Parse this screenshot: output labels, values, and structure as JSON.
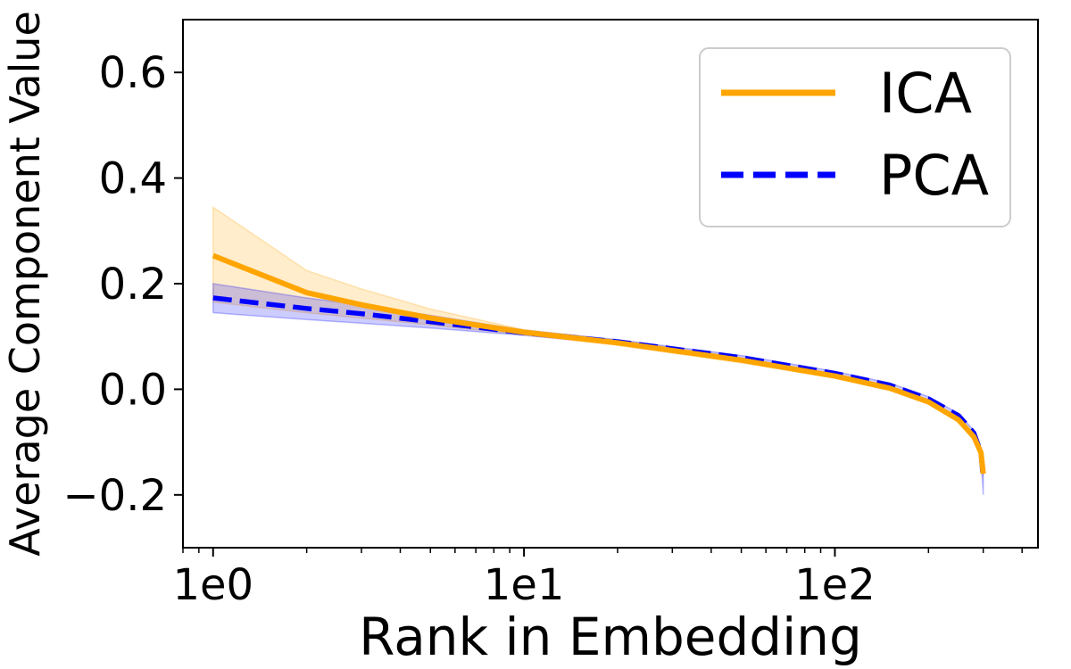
{
  "chart_data": {
    "type": "line",
    "title": "",
    "xlabel": "Rank in Embedding",
    "ylabel": "Average Component Value",
    "xscale": "log",
    "xlim": [
      0.8,
      450
    ],
    "ylim": [
      -0.3,
      0.7
    ],
    "grid": false,
    "legend_position": "top-right",
    "x_ticks": [
      1,
      10,
      100
    ],
    "x_tick_labels": [
      "1e0",
      "1e1",
      "1e2"
    ],
    "y_ticks": [
      -0.2,
      0.0,
      0.2,
      0.4,
      0.6
    ],
    "y_tick_labels": [
      "−0.2",
      "0.0",
      "0.2",
      "0.4",
      "0.6"
    ],
    "x": [
      1,
      2,
      3,
      5,
      10,
      20,
      50,
      100,
      150,
      200,
      250,
      280,
      295,
      300
    ],
    "series": [
      {
        "name": "ICA",
        "color": "#FFA500",
        "style": "solid",
        "values": [
          0.253,
          0.183,
          0.16,
          0.135,
          0.108,
          0.088,
          0.055,
          0.025,
          0.002,
          -0.024,
          -0.058,
          -0.09,
          -0.12,
          -0.16
        ],
        "lower": [
          0.165,
          0.145,
          0.135,
          0.122,
          0.103,
          0.083,
          0.05,
          0.021,
          -0.002,
          -0.028,
          -0.062,
          -0.094,
          -0.125,
          -0.165
        ],
        "upper": [
          0.345,
          0.225,
          0.19,
          0.152,
          0.113,
          0.093,
          0.06,
          0.029,
          0.006,
          -0.02,
          -0.054,
          -0.086,
          -0.115,
          -0.155
        ]
      },
      {
        "name": "PCA",
        "color": "#0000FF",
        "style": "dashed",
        "values": [
          0.173,
          0.153,
          0.143,
          0.128,
          0.107,
          0.09,
          0.06,
          0.03,
          0.008,
          -0.018,
          -0.05,
          -0.083,
          -0.12,
          -0.17
        ],
        "lower": [
          0.145,
          0.132,
          0.125,
          0.116,
          0.102,
          0.086,
          0.056,
          0.026,
          0.004,
          -0.022,
          -0.054,
          -0.088,
          -0.13,
          -0.2
        ],
        "upper": [
          0.2,
          0.173,
          0.16,
          0.14,
          0.112,
          0.094,
          0.064,
          0.034,
          0.012,
          -0.014,
          -0.046,
          -0.078,
          -0.11,
          -0.15
        ]
      }
    ]
  }
}
